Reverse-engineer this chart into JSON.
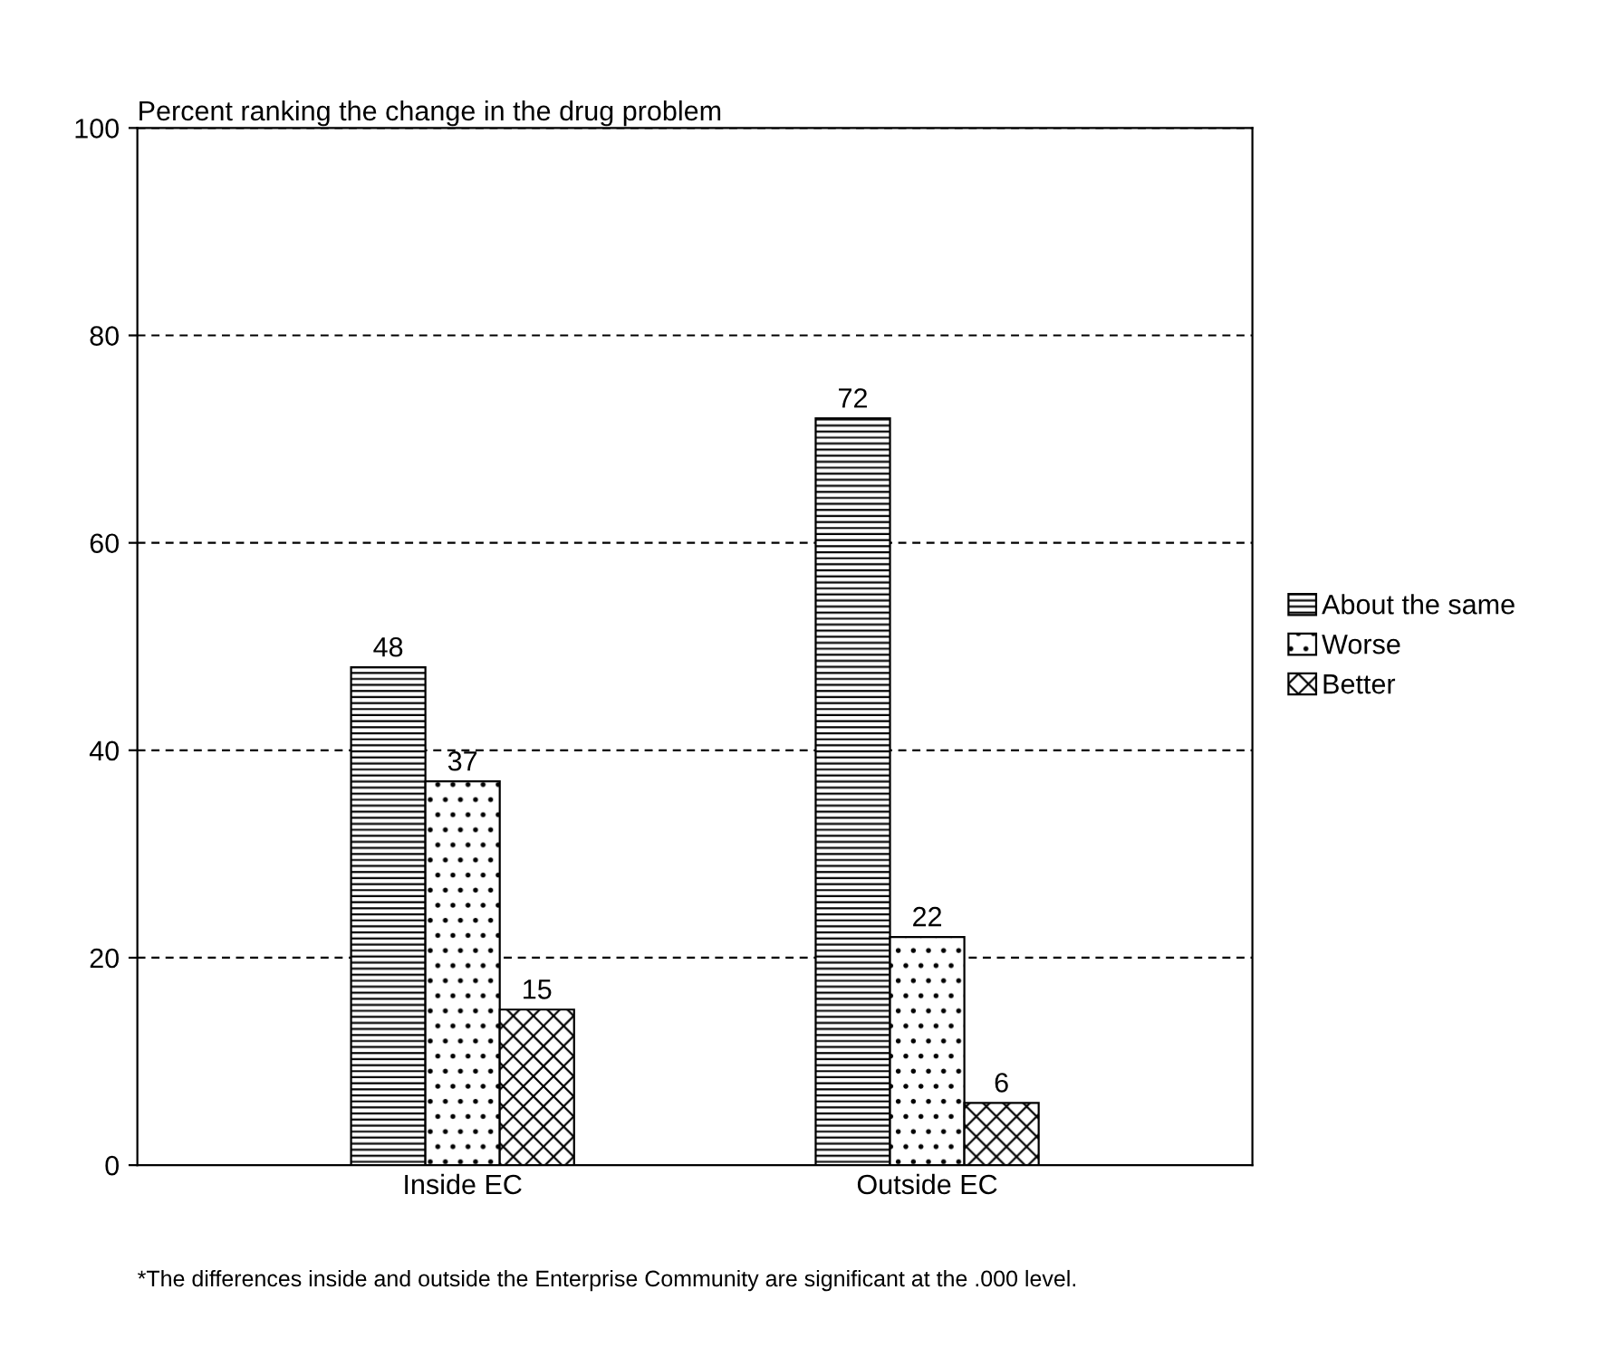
{
  "chart_data": {
    "type": "bar",
    "title": "Percent ranking the change in the drug problem",
    "categories": [
      "Inside EC",
      "Outside EC"
    ],
    "series": [
      {
        "name": "About the same",
        "color": "#000000",
        "values": [
          48,
          72
        ]
      },
      {
        "name": "Worse",
        "color": "#000000",
        "values": [
          37,
          22
        ]
      },
      {
        "name": "Better",
        "color": "#000000",
        "values": [
          15,
          6
        ]
      }
    ],
    "ylim": [
      0,
      100
    ],
    "yticks": [
      0,
      20,
      40,
      60,
      80,
      100
    ],
    "grid": "y",
    "legend": "right",
    "data_labels": true,
    "annotations": [
      "*The differences inside and outside the Enterprise Community are significant at the .000 level."
    ]
  }
}
